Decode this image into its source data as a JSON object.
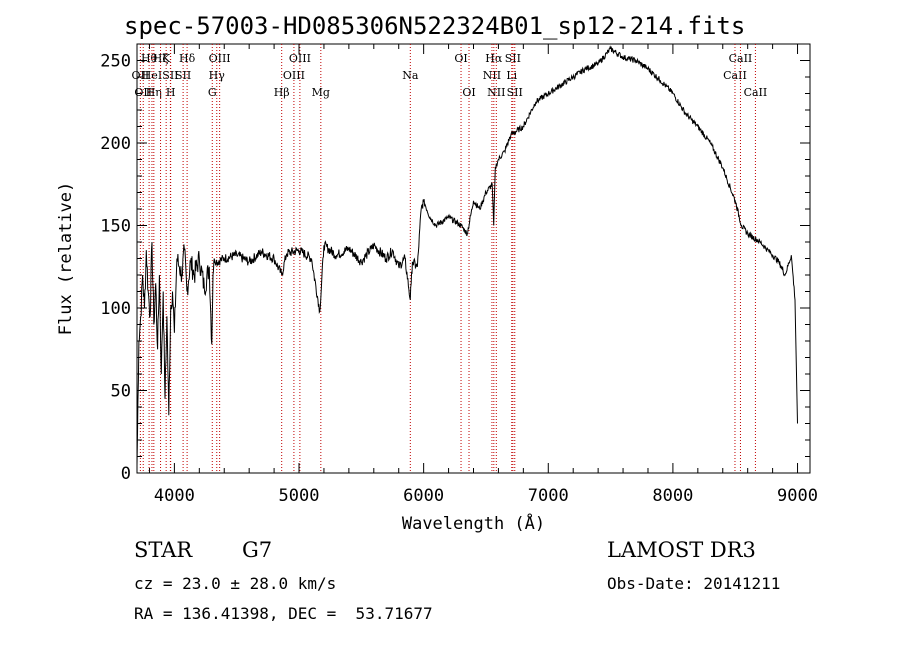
{
  "chart_data": {
    "type": "line",
    "title": "spec-57003-HD085306N522324B01_sp12-214.fits",
    "xlabel": "Wavelength (Å)",
    "ylabel": "Flux (relative)",
    "xlim": [
      3700,
      9100
    ],
    "ylim": [
      0,
      260
    ],
    "xticks": [
      4000,
      5000,
      6000,
      7000,
      8000,
      9000
    ],
    "yticks": [
      0,
      50,
      100,
      150,
      200,
      250
    ],
    "grid": false,
    "series": [
      {
        "name": "flux",
        "x": [
          3700,
          3715,
          3730,
          3745,
          3760,
          3775,
          3790,
          3805,
          3820,
          3835,
          3850,
          3865,
          3880,
          3895,
          3910,
          3925,
          3940,
          3955,
          3970,
          3985,
          4000,
          4020,
          4040,
          4060,
          4080,
          4100,
          4130,
          4160,
          4200,
          4240,
          4280,
          4300,
          4310,
          4320,
          4340,
          4400,
          4500,
          4600,
          4700,
          4800,
          4861,
          4900,
          5000,
          5100,
          5167,
          5200,
          5300,
          5400,
          5500,
          5600,
          5700,
          5750,
          5800,
          5850,
          5893,
          5900,
          5910,
          5950,
          5980,
          6000,
          6050,
          6100,
          6200,
          6300,
          6350,
          6400,
          6450,
          6500,
          6550,
          6562,
          6575,
          6600,
          6650,
          6700,
          6800,
          6900,
          7000,
          7100,
          7200,
          7300,
          7400,
          7500,
          7600,
          7700,
          7800,
          7900,
          8000,
          8100,
          8200,
          8300,
          8400,
          8500,
          8550,
          8600,
          8700,
          8800,
          8850,
          8900,
          8950,
          8980,
          9000
        ],
        "y": [
          5,
          80,
          95,
          120,
          100,
          135,
          110,
          95,
          140,
          90,
          115,
          75,
          120,
          60,
          110,
          45,
          95,
          35,
          100,
          110,
          85,
          130,
          125,
          120,
          135,
          110,
          128,
          120,
          130,
          112,
          125,
          78,
          120,
          130,
          128,
          130,
          132,
          128,
          134,
          130,
          120,
          133,
          135,
          130,
          98,
          138,
          132,
          136,
          128,
          138,
          130,
          135,
          125,
          130,
          105,
          115,
          128,
          125,
          160,
          165,
          155,
          150,
          155,
          150,
          145,
          165,
          160,
          170,
          175,
          150,
          185,
          190,
          195,
          205,
          210,
          225,
          230,
          235,
          240,
          245,
          248,
          257,
          252,
          250,
          245,
          238,
          230,
          218,
          210,
          200,
          185,
          165,
          150,
          145,
          140,
          132,
          128,
          120,
          132,
          105,
          30
        ]
      }
    ],
    "lines": [
      {
        "wl": 3727,
        "label": "OII",
        "row": 2
      },
      {
        "wl": 3750,
        "label": "OII",
        "row": 3
      },
      {
        "wl": 3797,
        "label": "Hθ",
        "row": 1
      },
      {
        "wl": 3820,
        "label": "HeI",
        "row": 2
      },
      {
        "wl": 3835,
        "label": "Hη",
        "row": 3
      },
      {
        "wl": 3889,
        "label": "Hζ",
        "row": 1
      },
      {
        "wl": 3934,
        "label": "K",
        "row": 1
      },
      {
        "wl": 3968,
        "label": "SII",
        "row": 2
      },
      {
        "wl": 3970,
        "label": "H",
        "row": 3
      },
      {
        "wl": 4102,
        "label": "Hδ",
        "row": 1
      },
      {
        "wl": 4070,
        "label": "SII",
        "row": 2
      },
      {
        "wl": 4304,
        "label": "G",
        "row": 3
      },
      {
        "wl": 4340,
        "label": "Hγ",
        "row": 2
      },
      {
        "wl": 4363,
        "label": "OIII",
        "row": 1
      },
      {
        "wl": 4861,
        "label": "Hβ",
        "row": 3
      },
      {
        "wl": 4959,
        "label": "OIII",
        "row": 2
      },
      {
        "wl": 5007,
        "label": "OIII",
        "row": 1
      },
      {
        "wl": 5175,
        "label": "Mg",
        "row": 3
      },
      {
        "wl": 5893,
        "label": "Na",
        "row": 2
      },
      {
        "wl": 6300,
        "label": "OI",
        "row": 1
      },
      {
        "wl": 6364,
        "label": "OI",
        "row": 3
      },
      {
        "wl": 6548,
        "label": "NII",
        "row": 2
      },
      {
        "wl": 6563,
        "label": "Hα",
        "row": 1
      },
      {
        "wl": 6583,
        "label": "NII",
        "row": 3
      },
      {
        "wl": 6707,
        "label": "Li",
        "row": 2
      },
      {
        "wl": 6716,
        "label": "SII",
        "row": 1
      },
      {
        "wl": 6731,
        "label": "SII",
        "row": 3
      },
      {
        "wl": 8498,
        "label": "CaII",
        "row": 2
      },
      {
        "wl": 8542,
        "label": "CaII",
        "row": 1
      },
      {
        "wl": 8662,
        "label": "CaII",
        "row": 3
      }
    ]
  },
  "info": {
    "object_class": "STAR",
    "subclass": "G7",
    "survey": "LAMOST DR3",
    "redshift": "cz = 23.0 ± 28.0 km/s",
    "obs_date": "Obs-Date: 20141211",
    "coords": "RA = 136.41398, DEC =  53.71677"
  }
}
